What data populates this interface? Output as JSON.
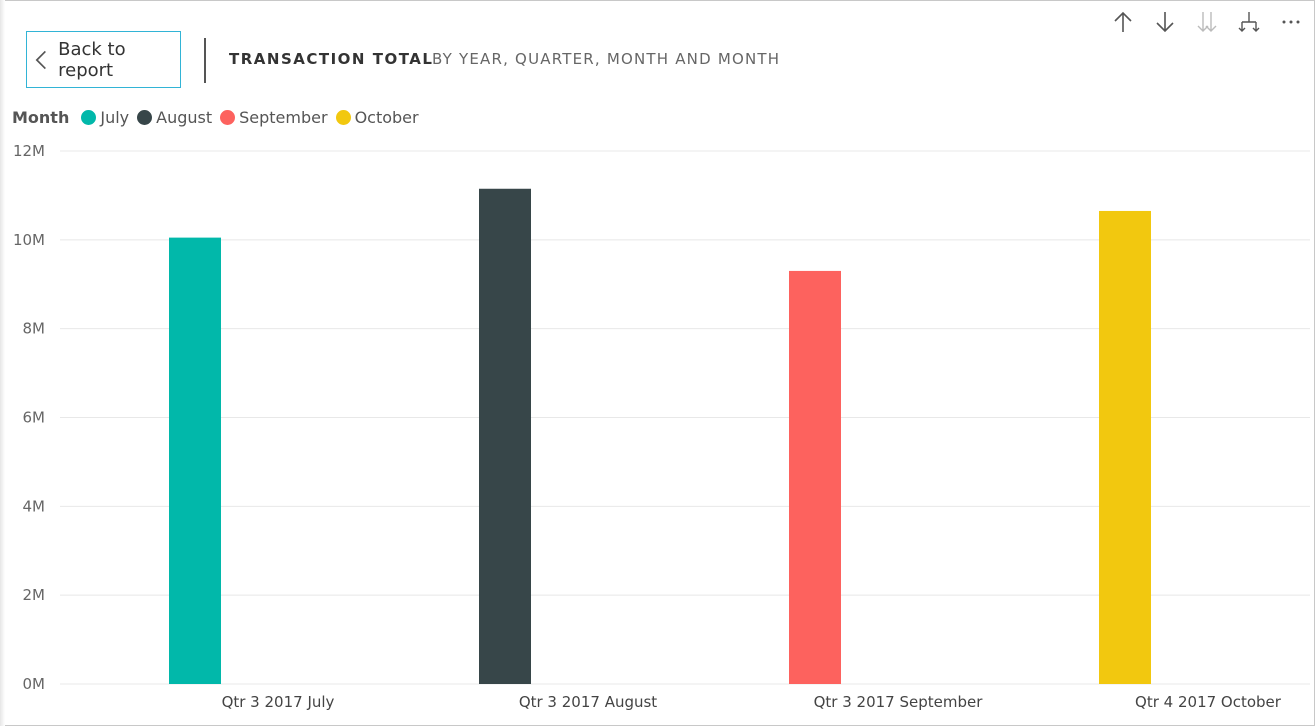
{
  "header": {
    "back_label": "Back to report",
    "title": "TRANSACTION TOTAL",
    "subtitle": "BY YEAR, QUARTER, MONTH AND MONTH"
  },
  "toolbar": {
    "icons": [
      "drill-up-icon",
      "drill-down-icon",
      "go-to-next-level-icon",
      "expand-hierarchy-icon",
      "more-options-icon"
    ]
  },
  "legend": {
    "title": "Month",
    "items": [
      {
        "label": "July",
        "color": "#01B8AA"
      },
      {
        "label": "August",
        "color": "#374649"
      },
      {
        "label": "September",
        "color": "#FD625E"
      },
      {
        "label": "October",
        "color": "#F2C80F"
      }
    ]
  },
  "chart_data": {
    "type": "bar",
    "title": "TRANSACTION TOTAL",
    "subtitle": "BY YEAR, QUARTER, MONTH AND MONTH",
    "xlabel": "",
    "ylabel": "",
    "categories": [
      "Qtr 3 2017 July",
      "Qtr 3 2017 August",
      "Qtr 3 2017 September",
      "Qtr 4 2017 October"
    ],
    "series": [
      {
        "name": "July",
        "color": "#01B8AA",
        "values": [
          10.05,
          null,
          null,
          null
        ]
      },
      {
        "name": "August",
        "color": "#374649",
        "values": [
          null,
          11.15,
          null,
          null
        ]
      },
      {
        "name": "September",
        "color": "#FD625E",
        "values": [
          null,
          null,
          9.3,
          null
        ]
      },
      {
        "name": "October",
        "color": "#F2C80F",
        "values": [
          null,
          null,
          null,
          10.65
        ]
      }
    ],
    "units": "M",
    "ylim": [
      0,
      12
    ],
    "yticks": [
      0,
      2,
      4,
      6,
      8,
      10,
      12
    ],
    "ytick_labels": [
      "0M",
      "2M",
      "4M",
      "6M",
      "8M",
      "10M",
      "12M"
    ],
    "grid": true,
    "legend_position": "top-left"
  }
}
